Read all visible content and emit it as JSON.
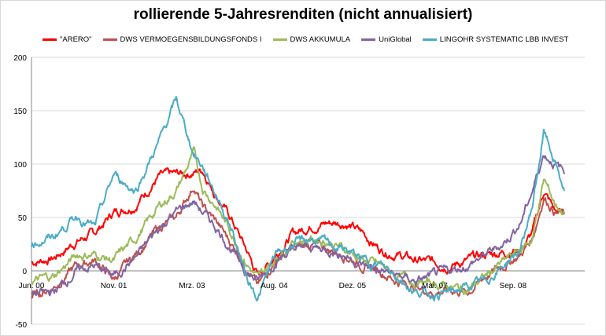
{
  "chart_data": {
    "type": "line",
    "title": "rollierende 5-Jahresrenditen (nicht annualisiert)",
    "xlabel": "",
    "ylabel": "",
    "ylim": [
      -50,
      200
    ],
    "yticks": [
      -50,
      0,
      50,
      100,
      150,
      200
    ],
    "xlim": [
      2000.42,
      2009.9
    ],
    "xticks": [
      {
        "label": "Jun. 00",
        "x": 2000.42
      },
      {
        "label": "Nov. 01",
        "x": 2001.83
      },
      {
        "label": "Mrz. 03",
        "x": 2003.17
      },
      {
        "label": "Aug. 04",
        "x": 2004.58
      },
      {
        "label": "Dez. 05",
        "x": 2005.92
      },
      {
        "label": "Mai. 07",
        "x": 2007.33
      },
      {
        "label": "Sep. 08",
        "x": 2008.67
      }
    ],
    "grid": true,
    "legend_position": "top",
    "series": [
      {
        "name": "\"ARERO\"",
        "color": "#ff0000",
        "x": [
          2000.42,
          2000.8,
          2001.2,
          2001.5,
          2001.83,
          2002.2,
          2002.6,
          2002.9,
          2003.2,
          2003.35,
          2003.6,
          2003.85,
          2004.1,
          2004.3,
          2004.6,
          2004.9,
          2005.2,
          2005.5,
          2005.8,
          2006.1,
          2006.4,
          2006.7,
          2007.0,
          2007.3,
          2007.6,
          2007.9,
          2008.2,
          2008.5,
          2008.8,
          2009.0,
          2009.2,
          2009.4,
          2009.55
        ],
        "values": [
          8,
          12,
          28,
          35,
          55,
          62,
          88,
          90,
          92,
          95,
          70,
          48,
          20,
          -5,
          15,
          35,
          42,
          45,
          45,
          35,
          20,
          15,
          10,
          8,
          5,
          10,
          15,
          18,
          20,
          35,
          75,
          55,
          55
        ]
      },
      {
        "name": "DWS VERMOEGENSBILDUNGSFONDS  I",
        "color": "#c0504d",
        "x": [
          2000.42,
          2000.8,
          2001.2,
          2001.5,
          2001.83,
          2002.2,
          2002.6,
          2002.9,
          2003.2,
          2003.35,
          2003.6,
          2003.85,
          2004.1,
          2004.3,
          2004.6,
          2004.9,
          2005.2,
          2005.5,
          2005.8,
          2006.1,
          2006.4,
          2006.7,
          2007.0,
          2007.3,
          2007.6,
          2007.9,
          2008.2,
          2008.5,
          2008.8,
          2009.0,
          2009.2,
          2009.4,
          2009.55
        ],
        "values": [
          -25,
          -15,
          5,
          10,
          -8,
          15,
          40,
          50,
          80,
          60,
          45,
          25,
          5,
          -15,
          10,
          20,
          25,
          20,
          15,
          5,
          0,
          -10,
          -15,
          -20,
          -18,
          -20,
          -5,
          5,
          15,
          30,
          70,
          55,
          52
        ]
      },
      {
        "name": "DWS AKKUMULA",
        "color": "#9bbb59",
        "x": [
          2000.42,
          2000.8,
          2001.2,
          2001.5,
          2001.83,
          2002.2,
          2002.6,
          2002.9,
          2003.2,
          2003.35,
          2003.6,
          2003.85,
          2004.1,
          2004.3,
          2004.6,
          2004.9,
          2005.2,
          2005.5,
          2005.8,
          2006.1,
          2006.4,
          2006.7,
          2007.0,
          2007.3,
          2007.6,
          2007.9,
          2008.2,
          2008.5,
          2008.8,
          2009.0,
          2009.2,
          2009.4,
          2009.55
        ],
        "values": [
          -10,
          -5,
          15,
          15,
          10,
          30,
          60,
          75,
          110,
          78,
          60,
          35,
          8,
          -8,
          12,
          28,
          30,
          28,
          20,
          10,
          5,
          -5,
          -10,
          -12,
          -15,
          -18,
          -5,
          8,
          20,
          30,
          85,
          62,
          55
        ]
      },
      {
        "name": "UniGlobal",
        "color": "#8064a2",
        "x": [
          2000.42,
          2000.8,
          2001.2,
          2001.5,
          2001.83,
          2002.2,
          2002.6,
          2002.9,
          2003.2,
          2003.35,
          2003.6,
          2003.85,
          2004.1,
          2004.3,
          2004.6,
          2004.9,
          2005.2,
          2005.5,
          2005.8,
          2006.1,
          2006.4,
          2006.7,
          2007.0,
          2007.3,
          2007.6,
          2007.9,
          2008.2,
          2008.5,
          2008.8,
          2009.0,
          2009.2,
          2009.4,
          2009.55
        ],
        "values": [
          -22,
          -20,
          0,
          5,
          -5,
          12,
          40,
          55,
          65,
          55,
          40,
          20,
          0,
          -10,
          10,
          20,
          22,
          20,
          15,
          5,
          0,
          -5,
          -10,
          -5,
          0,
          5,
          15,
          25,
          45,
          75,
          110,
          100,
          92
        ]
      },
      {
        "name": "LINGOHR SYSTEMATIC  LBB INVEST",
        "color": "#4bacc6",
        "x": [
          2000.42,
          2000.8,
          2001.2,
          2001.5,
          2001.83,
          2002.2,
          2002.6,
          2002.9,
          2003.2,
          2003.35,
          2003.6,
          2003.85,
          2004.1,
          2004.3,
          2004.6,
          2004.9,
          2005.2,
          2005.5,
          2005.8,
          2006.1,
          2006.4,
          2006.7,
          2007.0,
          2007.3,
          2007.6,
          2007.9,
          2008.2,
          2008.5,
          2008.8,
          2009.0,
          2009.2,
          2009.4,
          2009.55
        ],
        "values": [
          25,
          32,
          52,
          40,
          90,
          75,
          120,
          160,
          110,
          98,
          70,
          40,
          -5,
          -25,
          15,
          25,
          30,
          25,
          20,
          10,
          5,
          -5,
          -20,
          -22,
          -20,
          -15,
          -10,
          5,
          20,
          60,
          130,
          100,
          75
        ]
      }
    ]
  }
}
